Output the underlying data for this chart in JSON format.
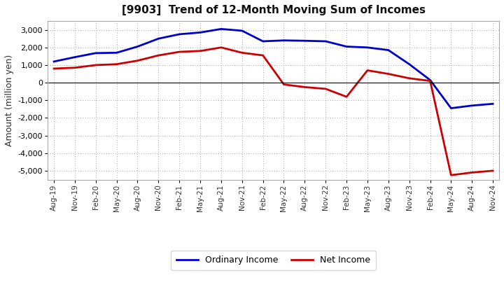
{
  "title": "[9903]  Trend of 12-Month Moving Sum of Incomes",
  "ylabel": "Amount (million yen)",
  "fig_background_color": "#ffffff",
  "plot_background_color": "#ffffff",
  "x_labels": [
    "Aug-19",
    "Nov-19",
    "Feb-20",
    "May-20",
    "Aug-20",
    "Nov-20",
    "Feb-21",
    "May-21",
    "Aug-21",
    "Nov-21",
    "Feb-22",
    "May-22",
    "Aug-22",
    "Nov-22",
    "Feb-23",
    "May-23",
    "Aug-23",
    "Nov-23",
    "Feb-24",
    "May-24",
    "Aug-24",
    "Nov-24"
  ],
  "ordinary_income": [
    1200,
    1450,
    1680,
    1700,
    2050,
    2500,
    2750,
    2850,
    3050,
    2950,
    2350,
    2400,
    2380,
    2350,
    2050,
    2000,
    1850,
    1050,
    150,
    -1450,
    -1300,
    -1200
  ],
  "net_income": [
    800,
    850,
    1000,
    1050,
    1250,
    1550,
    1750,
    1800,
    2000,
    1700,
    1550,
    -100,
    -250,
    -350,
    -800,
    700,
    500,
    250,
    100,
    -5250,
    -5100,
    -5000
  ],
  "ordinary_color": "#0000cc",
  "net_color": "#cc0000",
  "ylim": [
    -5500,
    3500
  ],
  "yticks": [
    -5000,
    -4000,
    -3000,
    -2000,
    -1000,
    0,
    1000,
    2000,
    3000
  ],
  "legend_labels": [
    "Ordinary Income",
    "Net Income"
  ],
  "line_width": 2.0
}
